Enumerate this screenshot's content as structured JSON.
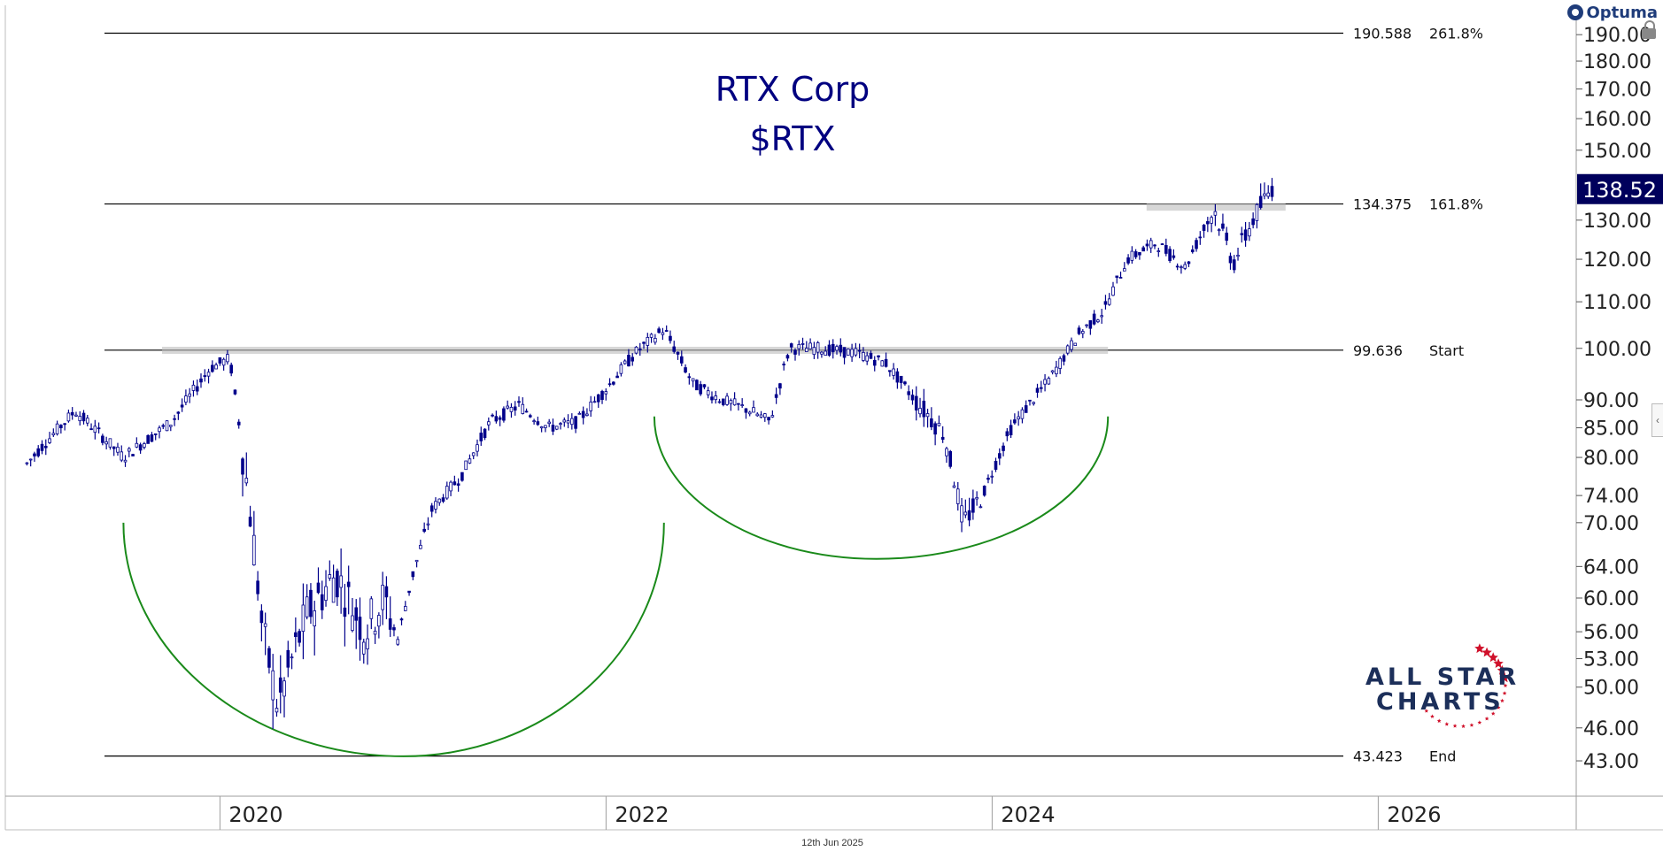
{
  "chart_data": {
    "type": "candlestick",
    "title": "RTX Corp",
    "subtitle": "$RTX",
    "x_tick_labels": [
      "2020",
      "2022",
      "2024",
      "2026"
    ],
    "y_tick_labels": [
      "190.00",
      "180.00",
      "170.00",
      "160.00",
      "150.00",
      "130.00",
      "120.00",
      "110.00",
      "100.00",
      "90.00",
      "85.00",
      "80.00",
      "74.00",
      "70.00",
      "64.00",
      "60.00",
      "56.00",
      "53.00",
      "50.00",
      "46.00",
      "43.00"
    ],
    "y_scale": "log",
    "ylim": [
      40,
      196
    ],
    "last_price": "138.52",
    "last_price_value": 138.52,
    "date_footer": "12th Jun 2025",
    "levels": [
      {
        "value": 190.588,
        "label": "190.588",
        "tag": "261.8%"
      },
      {
        "value": 134.375,
        "label": "134.375",
        "tag": "161.8%"
      },
      {
        "value": 99.636,
        "label": "99.636",
        "tag": "Start"
      },
      {
        "value": 43.423,
        "label": "43.423",
        "tag": "End"
      }
    ],
    "price_anchors": [
      [
        2019.0,
        79
      ],
      [
        2019.25,
        88
      ],
      [
        2019.5,
        80
      ],
      [
        2019.75,
        86
      ],
      [
        2019.95,
        96
      ],
      [
        2020.05,
        98
      ],
      [
        2020.13,
        78
      ],
      [
        2020.22,
        56
      ],
      [
        2020.3,
        48
      ],
      [
        2020.45,
        58
      ],
      [
        2020.6,
        63
      ],
      [
        2020.75,
        56
      ],
      [
        2020.85,
        60
      ],
      [
        2020.92,
        55
      ],
      [
        2021.0,
        63
      ],
      [
        2021.1,
        72
      ],
      [
        2021.25,
        77
      ],
      [
        2021.4,
        86
      ],
      [
        2021.55,
        89
      ],
      [
        2021.7,
        85
      ],
      [
        2021.85,
        86
      ],
      [
        2022.0,
        92
      ],
      [
        2022.15,
        99
      ],
      [
        2022.3,
        104
      ],
      [
        2022.45,
        93
      ],
      [
        2022.6,
        90
      ],
      [
        2022.75,
        88
      ],
      [
        2022.85,
        86
      ],
      [
        2022.95,
        100
      ],
      [
        2023.1,
        100
      ],
      [
        2023.3,
        99
      ],
      [
        2023.45,
        97
      ],
      [
        2023.6,
        90
      ],
      [
        2023.75,
        84
      ],
      [
        2023.85,
        70
      ],
      [
        2023.95,
        74
      ],
      [
        2024.1,
        85
      ],
      [
        2024.3,
        94
      ],
      [
        2024.45,
        103
      ],
      [
        2024.58,
        108
      ],
      [
        2024.7,
        120
      ],
      [
        2024.85,
        124
      ],
      [
        2025.0,
        118
      ],
      [
        2025.15,
        133
      ],
      [
        2025.25,
        119
      ],
      [
        2025.35,
        130
      ],
      [
        2025.45,
        139
      ]
    ],
    "cup_arcs": [
      {
        "left": [
          2019.5,
          70
        ],
        "bottom": [
          2020.95,
          43.4
        ],
        "right": [
          2022.3,
          70
        ]
      },
      {
        "left": [
          2022.25,
          87
        ],
        "bottom": [
          2023.4,
          65
        ],
        "right": [
          2024.6,
          87
        ]
      }
    ],
    "highlight_bands": [
      {
        "x0": 2019.7,
        "x1": 2024.6,
        "value": 99.6
      },
      {
        "x0": 2024.8,
        "x1": 2025.52,
        "value": 133.5
      }
    ]
  },
  "brand": {
    "line1": "ALL STAR",
    "line2": "CHARTS"
  },
  "optuma": {
    "name": "Optuma"
  },
  "colors": {
    "candles": "#00008b",
    "arcs": "#1a8a1a",
    "title": "#000080",
    "level_lines": "#000000",
    "price_tag": "#00005c",
    "stars": "#d0102a",
    "brand_text": "#1c2f5a"
  }
}
